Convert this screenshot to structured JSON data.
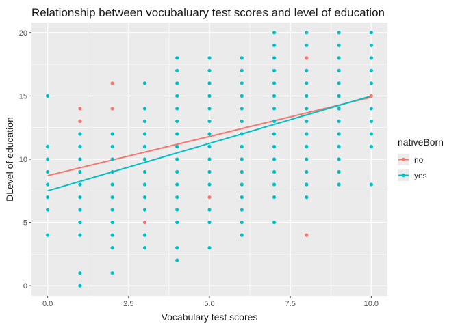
{
  "chart_data": {
    "type": "scatter",
    "title": "Relationship between vocubaluary test scores and level of education",
    "xlabel": "Vocabulary test scores",
    "ylabel": "DLevel of education",
    "xlim": [
      -0.5,
      10.5
    ],
    "ylim": [
      -0.8,
      20.8
    ],
    "x_ticks": [
      0,
      2.5,
      5,
      7.5,
      10
    ],
    "x_tick_labels": [
      "0.0",
      "2.5",
      "5.0",
      "7.5",
      "10.0"
    ],
    "y_ticks": [
      0,
      5,
      10,
      15,
      20
    ],
    "y_tick_labels": [
      "0",
      "5",
      "10",
      "15",
      "20"
    ],
    "grid": true,
    "legend": {
      "title": "nativeBorn",
      "placement": "right",
      "entries": [
        {
          "label": "no",
          "color": "#F8766D"
        },
        {
          "label": "yes",
          "color": "#00BFC4"
        }
      ]
    },
    "series": [
      {
        "name": "no",
        "color": "#F8766D",
        "points": [
          [
            0,
            6
          ],
          [
            1,
            5
          ],
          [
            1,
            13
          ],
          [
            1,
            14
          ],
          [
            2,
            14
          ],
          [
            2,
            16
          ],
          [
            3,
            5
          ],
          [
            5,
            7
          ],
          [
            8,
            4
          ],
          [
            8,
            18
          ],
          [
            10,
            15
          ]
        ],
        "trend": {
          "x": [
            0,
            10
          ],
          "y": [
            8.7,
            14.9
          ]
        }
      },
      {
        "name": "yes",
        "color": "#00BFC4",
        "points": [
          [
            0,
            4
          ],
          [
            0,
            6
          ],
          [
            0,
            7
          ],
          [
            0,
            8
          ],
          [
            0,
            9
          ],
          [
            0,
            10
          ],
          [
            0,
            11
          ],
          [
            0,
            15
          ],
          [
            1,
            0
          ],
          [
            1,
            1
          ],
          [
            1,
            4
          ],
          [
            1,
            5
          ],
          [
            1,
            6
          ],
          [
            1,
            7
          ],
          [
            1,
            8
          ],
          [
            1,
            9
          ],
          [
            1,
            10
          ],
          [
            1,
            11
          ],
          [
            1,
            12
          ],
          [
            2,
            1
          ],
          [
            2,
            3
          ],
          [
            2,
            4
          ],
          [
            2,
            5
          ],
          [
            2,
            6
          ],
          [
            2,
            7
          ],
          [
            2,
            8
          ],
          [
            2,
            9
          ],
          [
            2,
            10
          ],
          [
            2,
            11
          ],
          [
            2,
            12
          ],
          [
            3,
            3
          ],
          [
            3,
            4
          ],
          [
            3,
            6
          ],
          [
            3,
            7
          ],
          [
            3,
            8
          ],
          [
            3,
            9
          ],
          [
            3,
            10
          ],
          [
            3,
            11
          ],
          [
            3,
            12
          ],
          [
            3,
            13
          ],
          [
            3,
            14
          ],
          [
            3,
            16
          ],
          [
            4,
            2
          ],
          [
            4,
            3
          ],
          [
            4,
            5
          ],
          [
            4,
            6
          ],
          [
            4,
            7
          ],
          [
            4,
            8
          ],
          [
            4,
            9
          ],
          [
            4,
            10
          ],
          [
            4,
            11
          ],
          [
            4,
            12
          ],
          [
            4,
            13
          ],
          [
            4,
            14
          ],
          [
            4,
            15
          ],
          [
            4,
            16
          ],
          [
            4,
            17
          ],
          [
            4,
            18
          ],
          [
            5,
            3
          ],
          [
            5,
            5
          ],
          [
            5,
            6
          ],
          [
            5,
            8
          ],
          [
            5,
            9
          ],
          [
            5,
            10
          ],
          [
            5,
            11
          ],
          [
            5,
            12
          ],
          [
            5,
            13
          ],
          [
            5,
            14
          ],
          [
            5,
            15
          ],
          [
            5,
            16
          ],
          [
            5,
            17
          ],
          [
            5,
            18
          ],
          [
            6,
            4
          ],
          [
            6,
            5
          ],
          [
            6,
            6
          ],
          [
            6,
            7
          ],
          [
            6,
            8
          ],
          [
            6,
            9
          ],
          [
            6,
            10
          ],
          [
            6,
            11
          ],
          [
            6,
            12
          ],
          [
            6,
            13
          ],
          [
            6,
            14
          ],
          [
            6,
            15
          ],
          [
            6,
            16
          ],
          [
            6,
            17
          ],
          [
            6,
            18
          ],
          [
            7,
            5
          ],
          [
            7,
            7
          ],
          [
            7,
            8
          ],
          [
            7,
            9
          ],
          [
            7,
            10
          ],
          [
            7,
            11
          ],
          [
            7,
            12
          ],
          [
            7,
            13
          ],
          [
            7,
            14
          ],
          [
            7,
            15
          ],
          [
            7,
            16
          ],
          [
            7,
            17
          ],
          [
            7,
            18
          ],
          [
            7,
            19
          ],
          [
            7,
            20
          ],
          [
            8,
            7
          ],
          [
            8,
            8
          ],
          [
            8,
            9
          ],
          [
            8,
            10
          ],
          [
            8,
            11
          ],
          [
            8,
            12
          ],
          [
            8,
            13
          ],
          [
            8,
            14
          ],
          [
            8,
            15
          ],
          [
            8,
            16
          ],
          [
            8,
            17
          ],
          [
            8,
            19
          ],
          [
            8,
            20
          ],
          [
            9,
            8
          ],
          [
            9,
            9
          ],
          [
            9,
            10
          ],
          [
            9,
            11
          ],
          [
            9,
            12
          ],
          [
            9,
            13
          ],
          [
            9,
            14
          ],
          [
            9,
            15
          ],
          [
            9,
            16
          ],
          [
            9,
            17
          ],
          [
            9,
            18
          ],
          [
            9,
            19
          ],
          [
            9,
            20
          ],
          [
            10,
            8
          ],
          [
            10,
            11
          ],
          [
            10,
            12
          ],
          [
            10,
            13
          ],
          [
            10,
            14
          ],
          [
            10,
            16
          ],
          [
            10,
            17
          ],
          [
            10,
            18
          ],
          [
            10,
            19
          ],
          [
            10,
            20
          ]
        ],
        "trend": {
          "x": [
            0,
            10
          ],
          "y": [
            7.5,
            15.0
          ]
        }
      }
    ]
  }
}
